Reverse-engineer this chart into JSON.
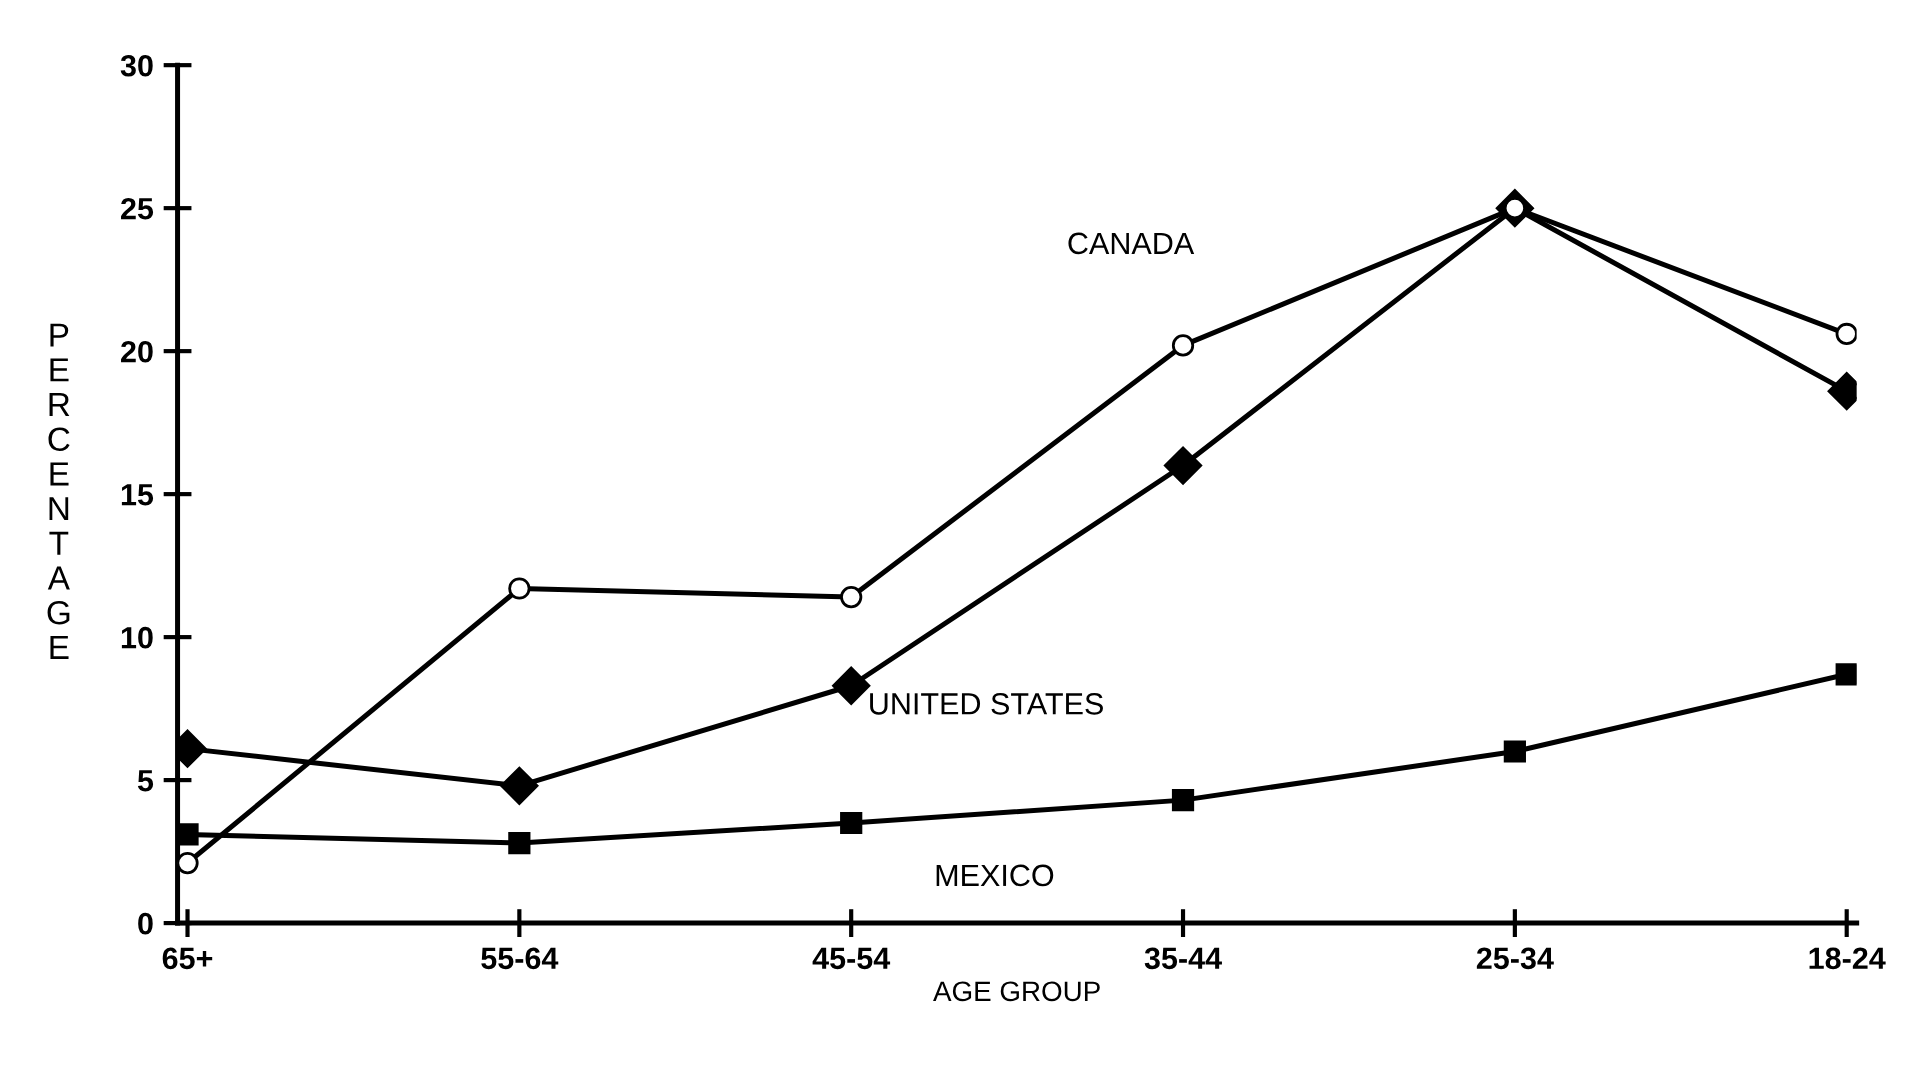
{
  "chart_data": {
    "type": "line",
    "xlabel": "AGE GROUP",
    "ylabel": "PERCENTAGE",
    "categories": [
      "65+",
      "55-64",
      "45-54",
      "35-44",
      "25-34",
      "18-24"
    ],
    "series": [
      {
        "name": "CANADA",
        "color": "#000000",
        "marker": "circle",
        "values": [
          2.1,
          11.7,
          11.4,
          20.2,
          25,
          20.6
        ]
      },
      {
        "name": "UNITED STATES",
        "color": "#000000",
        "marker": "diamond",
        "values": [
          6.1,
          4.8,
          8.3,
          16,
          25,
          18.6
        ]
      },
      {
        "name": "MEXICO",
        "color": "#000000",
        "marker": "square",
        "values": [
          3.1,
          2.8,
          3.5,
          4.3,
          6.0,
          8.7
        ]
      }
    ],
    "ylim": [
      0,
      30
    ],
    "yticks": [
      0,
      5,
      10,
      15,
      20,
      25,
      30
    ],
    "grid": false,
    "legend": false,
    "line_style": "solid"
  }
}
